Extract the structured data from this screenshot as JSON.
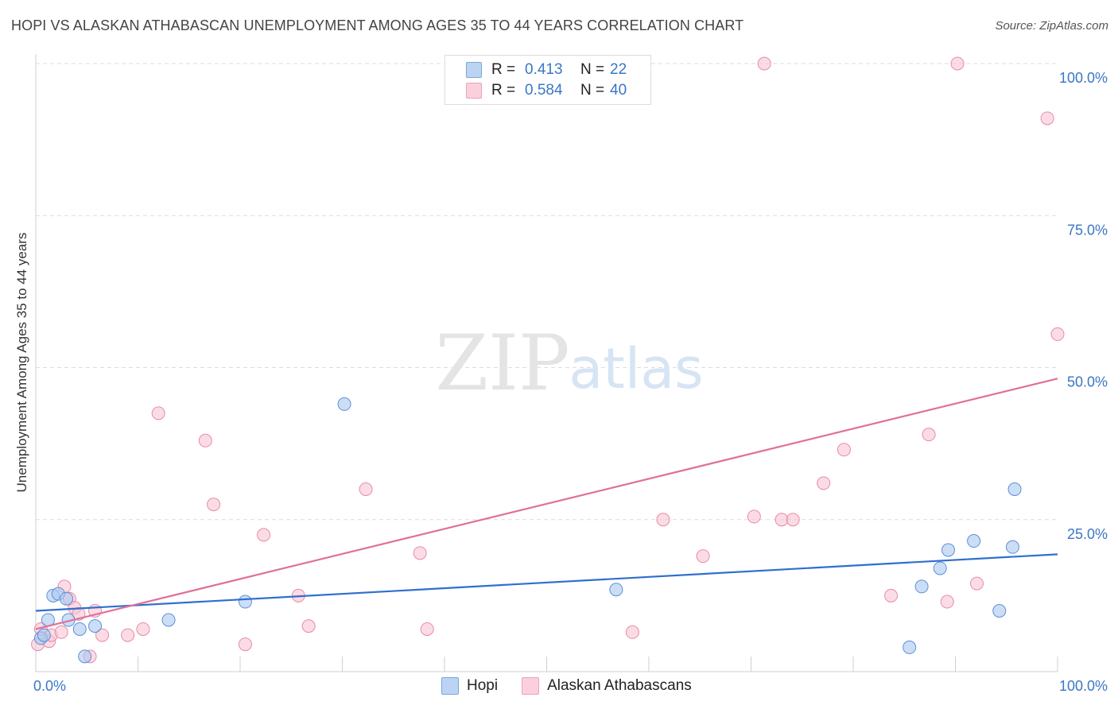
{
  "title": "HOPI VS ALASKAN ATHABASCAN UNEMPLOYMENT AMONG AGES 35 TO 44 YEARS CORRELATION CHART",
  "source": "Source: ZipAtlas.com",
  "watermark": {
    "zip": "ZIP",
    "atlas": "atlas"
  },
  "legend": {
    "r_label": "R =",
    "n_label": "N =",
    "rows": [
      {
        "series": "Hopi",
        "r": "0.413",
        "n": "22"
      },
      {
        "series": "Alaskan Athabascans",
        "r": "0.584",
        "n": "40"
      }
    ]
  },
  "colors": {
    "hopi_fill": "#aac8f0",
    "hopi_stroke": "#5b8fd6",
    "hopi_line": "#2f6fcf",
    "alaskan_fill": "#f8c4d4",
    "alaskan_stroke": "#e88aa8",
    "alaskan_line": "#e0709a",
    "tick_label": "#3a76c4",
    "grid": "#dcdcdc"
  },
  "chart_data": {
    "type": "scatter",
    "title": "HOPI VS ALASKAN ATHABASCAN UNEMPLOYMENT AMONG AGES 35 TO 44 YEARS CORRELATION CHART",
    "xlabel": "",
    "ylabel": "Unemployment Among Ages 35 to 44 years",
    "xlim": [
      0,
      100
    ],
    "ylim": [
      0,
      102
    ],
    "x_tick_labels": [
      "0.0%",
      "100.0%"
    ],
    "y_ticks": [
      25,
      50,
      75,
      100
    ],
    "y_tick_labels": [
      "25.0%",
      "50.0%",
      "75.0%",
      "100.0%"
    ],
    "legend_position": "top-center",
    "series": [
      {
        "name": "Hopi",
        "points": [
          [
            0.5,
            5.5
          ],
          [
            0.8,
            6
          ],
          [
            1.2,
            8.5
          ],
          [
            1.7,
            12.5
          ],
          [
            2.2,
            12.8
          ],
          [
            3.0,
            12
          ],
          [
            3.2,
            8.5
          ],
          [
            4.3,
            7
          ],
          [
            4.8,
            2.5
          ],
          [
            5.8,
            7.5
          ],
          [
            13,
            8.5
          ],
          [
            20.5,
            11.5
          ],
          [
            30.2,
            44
          ],
          [
            56.8,
            13.5
          ],
          [
            85.5,
            4
          ],
          [
            86.7,
            14
          ],
          [
            88.5,
            17
          ],
          [
            89.3,
            20
          ],
          [
            91.8,
            21.5
          ],
          [
            94.3,
            10
          ],
          [
            95.6,
            20.5
          ],
          [
            95.8,
            30
          ]
        ],
        "trend": {
          "x": [
            0,
            100
          ],
          "y": [
            10.0,
            19.3
          ]
        }
      },
      {
        "name": "Alaskan Athabascans",
        "points": [
          [
            0.2,
            4.5
          ],
          [
            0.5,
            7
          ],
          [
            1.3,
            5
          ],
          [
            1.5,
            6
          ],
          [
            2.5,
            6.5
          ],
          [
            2.8,
            14
          ],
          [
            3.3,
            12
          ],
          [
            3.8,
            10.5
          ],
          [
            4.2,
            9.5
          ],
          [
            5.3,
            2.5
          ],
          [
            5.8,
            10
          ],
          [
            6.5,
            6
          ],
          [
            9,
            6
          ],
          [
            10.5,
            7
          ],
          [
            12,
            42.5
          ],
          [
            16.6,
            38
          ],
          [
            17.4,
            27.5
          ],
          [
            20.5,
            4.5
          ],
          [
            22.3,
            22.5
          ],
          [
            25.7,
            12.5
          ],
          [
            26.7,
            7.5
          ],
          [
            32.3,
            30
          ],
          [
            37.6,
            19.5
          ],
          [
            38.3,
            7
          ],
          [
            58.4,
            6.5
          ],
          [
            61.4,
            25
          ],
          [
            65.3,
            19
          ],
          [
            70.3,
            25.5
          ],
          [
            71.3,
            100
          ],
          [
            73,
            25
          ],
          [
            74.1,
            25
          ],
          [
            77.1,
            31
          ],
          [
            79.1,
            36.5
          ],
          [
            83.7,
            12.5
          ],
          [
            87.4,
            39
          ],
          [
            89.2,
            11.5
          ],
          [
            90.2,
            100
          ],
          [
            92.1,
            14.5
          ],
          [
            99,
            91
          ],
          [
            100,
            55.5
          ]
        ],
        "trend": {
          "x": [
            0,
            100
          ],
          "y": [
            7.0,
            48.2
          ]
        }
      }
    ]
  }
}
